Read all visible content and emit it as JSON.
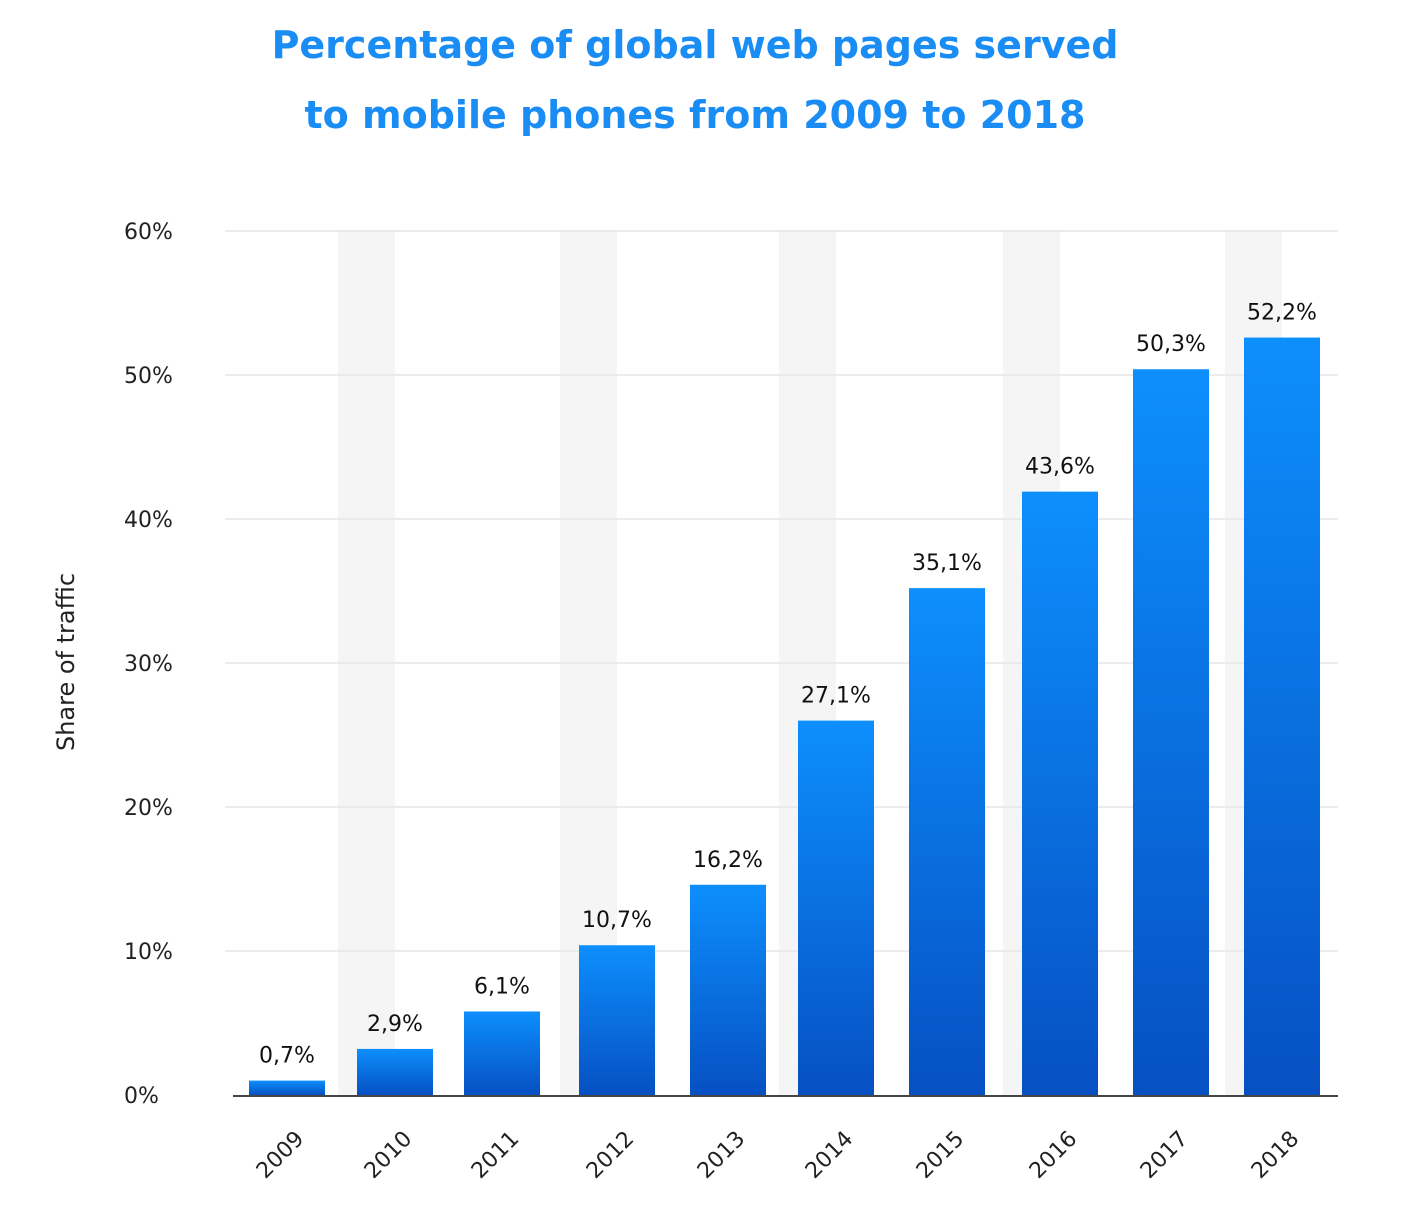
{
  "chart_data": {
    "type": "bar",
    "title_line1": "Percentage of global web pages served",
    "title_line2": "to mobile phones from 2009 to 2018",
    "ylabel": "Share of traffic",
    "xlabel": "",
    "categories": [
      "2009",
      "2010",
      "2011",
      "2012",
      "2013",
      "2014",
      "2015",
      "2016",
      "2017",
      "2018"
    ],
    "values": [
      0.7,
      2.9,
      6.1,
      10.7,
      16.2,
      27.1,
      35.1,
      43.6,
      50.3,
      52.2
    ],
    "bar_heights_pct": [
      1.0,
      3.2,
      5.8,
      10.4,
      14.6,
      26.0,
      35.2,
      41.9,
      50.4,
      52.6
    ],
    "data_labels": [
      "0,7%",
      "2,9%",
      "6,1%",
      "10,7%",
      "16,2%",
      "27,1%",
      "35,1%",
      "43,6%",
      "50,3%",
      "52,2%"
    ],
    "yticks": [
      "0%",
      "10%",
      "20%",
      "30%",
      "40%",
      "50%",
      "60%"
    ],
    "ylim": [
      0,
      60
    ],
    "grid": true,
    "colors": {
      "title": "#1a8df5",
      "bar_top": "#0d8ffd",
      "bar_bottom": "#0650c2",
      "band": "#f5f5f5",
      "grid": "#e6e6e6",
      "axis": "#444444"
    }
  }
}
